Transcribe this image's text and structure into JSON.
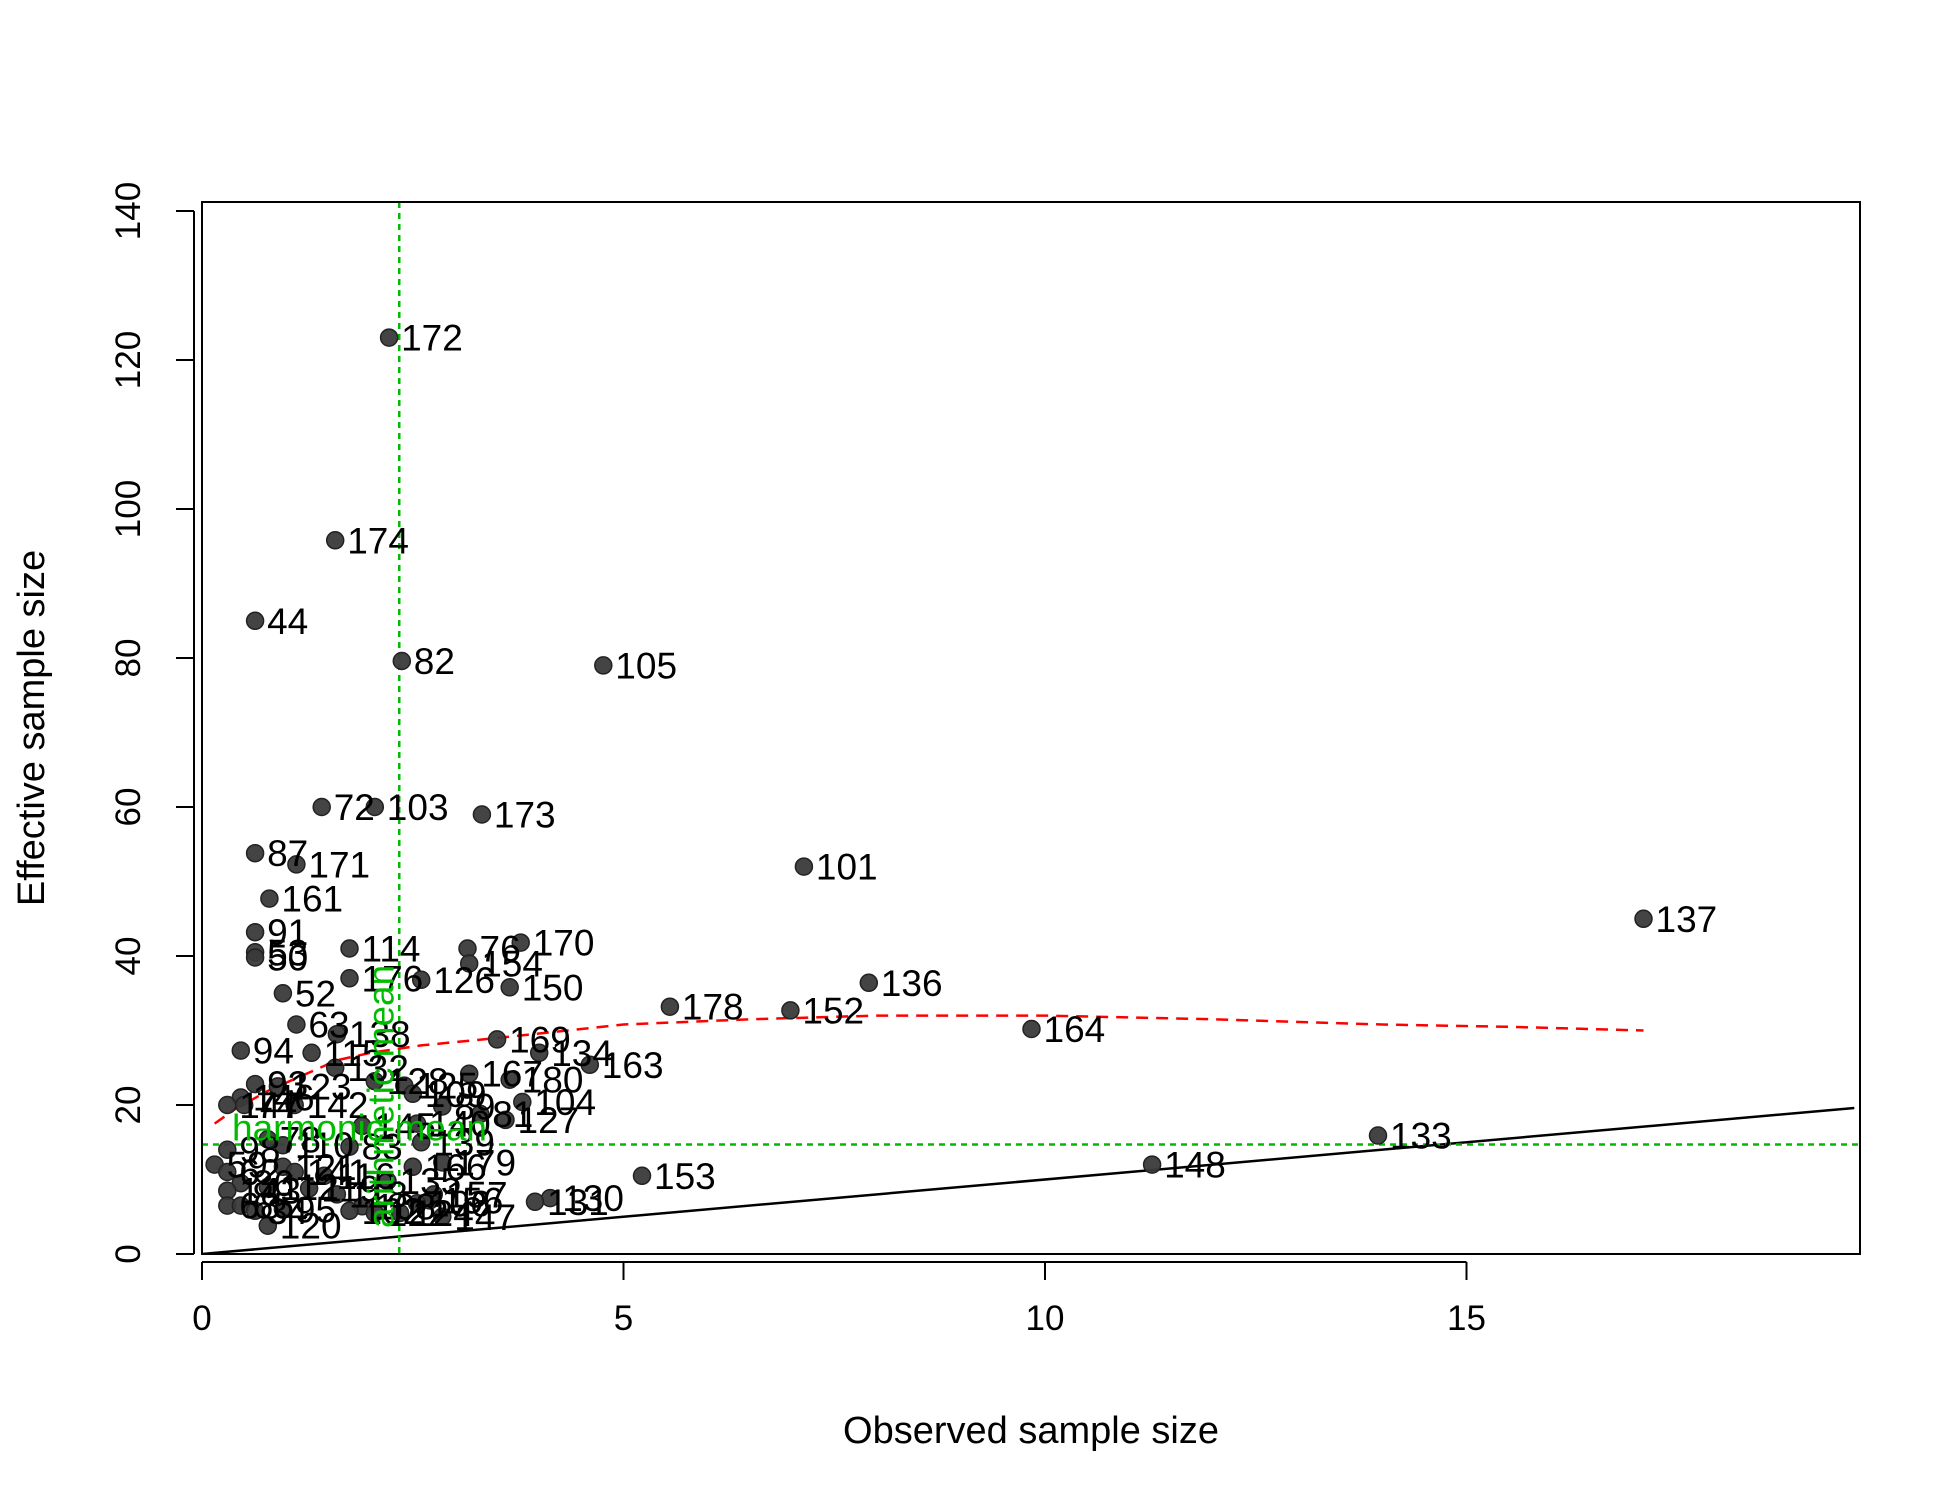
{
  "chart_data": {
    "type": "scatter",
    "title": "",
    "xlabel": "Observed sample size",
    "ylabel": "Effective sample size",
    "xlim": [
      0,
      19.6
    ],
    "ylim": [
      0,
      140
    ],
    "xticks": [
      0,
      5,
      10,
      15
    ],
    "yticks": [
      0,
      20,
      40,
      60,
      80,
      100,
      120,
      140
    ],
    "grid": false,
    "legend": "none",
    "colors": {
      "points": "#3a3a3a",
      "identity_line": "#000000",
      "trend_line": "#ff0000",
      "reference_lines": "#00bb00"
    },
    "identity_line": {
      "from": [
        0,
        0
      ],
      "to": [
        19.6,
        19.6
      ]
    },
    "trend_line": {
      "x": [
        0.15,
        0.4,
        0.8,
        1.2,
        1.6,
        2.0,
        2.6,
        3.5,
        5.0,
        6.5,
        8.0,
        10.0,
        12.0,
        14.0,
        15.5,
        17.1
      ],
      "y": [
        17.5,
        19.5,
        22.0,
        24.0,
        26.0,
        27.0,
        28.0,
        29.0,
        30.8,
        31.5,
        32.0,
        32.0,
        31.5,
        30.8,
        30.5,
        30.0
      ]
    },
    "reference_lines": [
      {
        "orientation": "vertical",
        "value": 2.34,
        "label": "arithmetic mean"
      },
      {
        "orientation": "horizontal",
        "value": 14.7,
        "label": "harmonic mean"
      }
    ],
    "points": [
      {
        "id": "172",
        "x": 2.22,
        "y": 123
      },
      {
        "id": "174",
        "x": 1.58,
        "y": 95.8
      },
      {
        "id": "44",
        "x": 0.63,
        "y": 85
      },
      {
        "id": "82",
        "x": 2.37,
        "y": 79.6
      },
      {
        "id": "105",
        "x": 4.76,
        "y": 79
      },
      {
        "id": "72",
        "x": 1.42,
        "y": 60
      },
      {
        "id": "103",
        "x": 2.05,
        "y": 60
      },
      {
        "id": "173",
        "x": 3.32,
        "y": 59
      },
      {
        "id": "87",
        "x": 0.63,
        "y": 53.8
      },
      {
        "id": "171",
        "x": 1.12,
        "y": 52.3
      },
      {
        "id": "101",
        "x": 7.14,
        "y": 52
      },
      {
        "id": "161",
        "x": 0.8,
        "y": 47.7
      },
      {
        "id": "137",
        "x": 17.1,
        "y": 45
      },
      {
        "id": "91",
        "x": 0.63,
        "y": 43.2
      },
      {
        "id": "170",
        "x": 3.78,
        "y": 41.8
      },
      {
        "id": "114",
        "x": 1.75,
        "y": 41
      },
      {
        "id": "76",
        "x": 3.15,
        "y": 41
      },
      {
        "id": "53",
        "x": 0.63,
        "y": 40.5
      },
      {
        "id": "50",
        "x": 0.63,
        "y": 39.8
      },
      {
        "id": "154",
        "x": 3.17,
        "y": 39
      },
      {
        "id": "176",
        "x": 1.75,
        "y": 37
      },
      {
        "id": "126",
        "x": 2.6,
        "y": 36.8
      },
      {
        "id": "136",
        "x": 7.91,
        "y": 36.4
      },
      {
        "id": "150",
        "x": 3.65,
        "y": 35.8
      },
      {
        "id": "52",
        "x": 0.96,
        "y": 35
      },
      {
        "id": "178",
        "x": 5.55,
        "y": 33.2
      },
      {
        "id": "152",
        "x": 6.98,
        "y": 32.7
      },
      {
        "id": "63",
        "x": 1.12,
        "y": 30.8
      },
      {
        "id": "164",
        "x": 9.84,
        "y": 30.2
      },
      {
        "id": "138",
        "x": 1.6,
        "y": 29.5
      },
      {
        "id": "169",
        "x": 3.5,
        "y": 28.8
      },
      {
        "id": "115",
        "x": 1.3,
        "y": 27
      },
      {
        "id": "94",
        "x": 0.46,
        "y": 27.3
      },
      {
        "id": "134",
        "x": 4.0,
        "y": 27
      },
      {
        "id": "132",
        "x": 1.58,
        "y": 25
      },
      {
        "id": "163",
        "x": 4.6,
        "y": 25.4
      },
      {
        "id": "167",
        "x": 3.17,
        "y": 24.2
      },
      {
        "id": "180",
        "x": 3.65,
        "y": 23.4
      },
      {
        "id": "128",
        "x": 2.05,
        "y": 23.2
      },
      {
        "id": "125",
        "x": 2.4,
        "y": 22.6
      },
      {
        "id": "93",
        "x": 0.63,
        "y": 22.8
      },
      {
        "id": "123",
        "x": 0.9,
        "y": 22.5
      },
      {
        "id": "109",
        "x": 2.5,
        "y": 21.5
      },
      {
        "id": "146",
        "x": 0.46,
        "y": 21
      },
      {
        "id": "104",
        "x": 3.8,
        "y": 20.4
      },
      {
        "id": "147",
        "x": 0.3,
        "y": 20
      },
      {
        "id": "74",
        "x": 0.5,
        "y": 20
      },
      {
        "id": "142",
        "x": 1.1,
        "y": 20
      },
      {
        "id": "89",
        "x": 2.85,
        "y": 19.8
      },
      {
        "id": "81",
        "x": 3.3,
        "y": 18.8
      },
      {
        "id": "127",
        "x": 3.6,
        "y": 18
      },
      {
        "id": "140",
        "x": 2.55,
        "y": 17.5
      },
      {
        "id": "145",
        "x": 1.9,
        "y": 17.2
      },
      {
        "id": "78",
        "x": 0.78,
        "y": 15.4
      },
      {
        "id": "133",
        "x": 13.95,
        "y": 15.9
      },
      {
        "id": "139",
        "x": 2.6,
        "y": 15
      },
      {
        "id": "110",
        "x": 0.96,
        "y": 14.6
      },
      {
        "id": "83",
        "x": 1.75,
        "y": 14.4
      },
      {
        "id": "98",
        "x": 0.3,
        "y": 14
      },
      {
        "id": "179",
        "x": 2.85,
        "y": 12.3
      },
      {
        "id": "166",
        "x": 2.5,
        "y": 11.7
      },
      {
        "id": "148",
        "x": 11.27,
        "y": 12
      },
      {
        "id": "121",
        "x": 0.96,
        "y": 11.7
      },
      {
        "id": "59",
        "x": 0.15,
        "y": 12
      },
      {
        "id": "62",
        "x": 0.3,
        "y": 11
      },
      {
        "id": "141",
        "x": 1.1,
        "y": 11
      },
      {
        "id": "116",
        "x": 1.45,
        "y": 10.5
      },
      {
        "id": "153",
        "x": 5.22,
        "y": 10.5
      },
      {
        "id": "135",
        "x": 2.2,
        "y": 9.8
      },
      {
        "id": "86",
        "x": 0.46,
        "y": 9.5
      },
      {
        "id": "112",
        "x": 0.78,
        "y": 9
      },
      {
        "id": "119",
        "x": 1.27,
        "y": 8.8
      },
      {
        "id": "143",
        "x": 0.3,
        "y": 8.5
      },
      {
        "id": "157",
        "x": 2.75,
        "y": 8
      },
      {
        "id": "118",
        "x": 1.6,
        "y": 8
      },
      {
        "id": "130",
        "x": 4.13,
        "y": 7.5
      },
      {
        "id": "131",
        "x": 3.95,
        "y": 7.0
      },
      {
        "id": "156",
        "x": 2.7,
        "y": 7.2
      },
      {
        "id": "106",
        "x": 2.55,
        "y": 6.8
      },
      {
        "id": "68",
        "x": 0.3,
        "y": 6.5
      },
      {
        "id": "65",
        "x": 0.46,
        "y": 6.5
      },
      {
        "id": "108",
        "x": 1.9,
        "y": 6.4
      },
      {
        "id": "34",
        "x": 0.63,
        "y": 5.8
      },
      {
        "id": "95",
        "x": 0.96,
        "y": 6
      },
      {
        "id": "102",
        "x": 1.75,
        "y": 5.8
      },
      {
        "id": "122",
        "x": 2.05,
        "y": 5.5
      },
      {
        "id": "124",
        "x": 2.35,
        "y": 5.5
      },
      {
        "id": "147b",
        "x": 2.85,
        "y": 5.0
      },
      {
        "id": "120",
        "x": 0.78,
        "y": 3.8
      }
    ],
    "point_labels": [
      {
        "point": "172",
        "text": "172"
      },
      {
        "point": "174",
        "text": "174"
      },
      {
        "point": "44",
        "text": "44"
      },
      {
        "point": "82",
        "text": "82"
      },
      {
        "point": "105",
        "text": "105"
      },
      {
        "point": "72",
        "text": "72"
      },
      {
        "point": "103",
        "text": "103"
      },
      {
        "point": "173",
        "text": "173"
      },
      {
        "point": "87",
        "text": "87"
      },
      {
        "point": "171",
        "text": "171"
      },
      {
        "point": "101",
        "text": "101"
      },
      {
        "point": "161",
        "text": "161"
      },
      {
        "point": "137",
        "text": "137"
      },
      {
        "point": "91",
        "text": "91"
      },
      {
        "point": "170",
        "text": "170"
      },
      {
        "point": "114",
        "text": "114"
      },
      {
        "point": "76",
        "text": "76"
      },
      {
        "point": "53",
        "text": "53"
      },
      {
        "point": "50",
        "text": "50"
      },
      {
        "point": "154",
        "text": "154"
      },
      {
        "point": "176",
        "text": "176"
      },
      {
        "point": "126",
        "text": "126"
      },
      {
        "point": "136",
        "text": "136"
      },
      {
        "point": "150",
        "text": "150"
      },
      {
        "point": "52",
        "text": "52"
      },
      {
        "point": "178",
        "text": "178"
      },
      {
        "point": "152",
        "text": "152"
      },
      {
        "point": "63",
        "text": "63"
      },
      {
        "point": "164",
        "text": "164"
      },
      {
        "point": "138",
        "text": "138"
      },
      {
        "point": "169",
        "text": "169"
      },
      {
        "point": "115",
        "text": "115"
      },
      {
        "point": "94",
        "text": "94"
      },
      {
        "point": "134",
        "text": "134"
      },
      {
        "point": "132",
        "text": "132"
      },
      {
        "point": "163",
        "text": "163"
      },
      {
        "point": "167",
        "text": "167"
      },
      {
        "point": "180",
        "text": "180"
      },
      {
        "point": "128",
        "text": "128"
      },
      {
        "point": "125",
        "text": "125"
      },
      {
        "point": "93",
        "text": "93"
      },
      {
        "point": "123",
        "text": "123"
      },
      {
        "point": "109",
        "text": "109"
      },
      {
        "point": "146",
        "text": "146"
      },
      {
        "point": "104",
        "text": "104"
      },
      {
        "point": "147",
        "text": "147"
      },
      {
        "point": "74",
        "text": "74"
      },
      {
        "point": "142",
        "text": "142"
      },
      {
        "point": "89",
        "text": "89"
      },
      {
        "point": "81",
        "text": "81"
      },
      {
        "point": "127",
        "text": "127"
      },
      {
        "point": "140",
        "text": "140"
      },
      {
        "point": "145",
        "text": "145"
      },
      {
        "point": "78",
        "text": "78"
      },
      {
        "point": "133",
        "text": "133"
      },
      {
        "point": "139",
        "text": "139"
      },
      {
        "point": "110",
        "text": "110"
      },
      {
        "point": "83",
        "text": "83"
      },
      {
        "point": "98",
        "text": "98"
      },
      {
        "point": "179",
        "text": "179"
      },
      {
        "point": "166",
        "text": "166"
      },
      {
        "point": "148",
        "text": "148"
      },
      {
        "point": "121",
        "text": "121"
      },
      {
        "point": "59",
        "text": "59"
      },
      {
        "point": "62",
        "text": "62"
      },
      {
        "point": "141",
        "text": "141"
      },
      {
        "point": "116",
        "text": "116"
      },
      {
        "point": "153",
        "text": "153"
      },
      {
        "point": "135",
        "text": "135"
      },
      {
        "point": "86",
        "text": "86"
      },
      {
        "point": "112",
        "text": "112"
      },
      {
        "point": "119",
        "text": "119"
      },
      {
        "point": "143",
        "text": "143"
      },
      {
        "point": "157",
        "text": "157"
      },
      {
        "point": "118",
        "text": "118"
      },
      {
        "point": "130",
        "text": "130"
      },
      {
        "point": "131",
        "text": "131"
      },
      {
        "point": "156",
        "text": "156"
      },
      {
        "point": "106",
        "text": "106"
      },
      {
        "point": "68",
        "text": "68"
      },
      {
        "point": "65",
        "text": "65"
      },
      {
        "point": "108",
        "text": "108"
      },
      {
        "point": "34",
        "text": "34"
      },
      {
        "point": "95",
        "text": "95"
      },
      {
        "point": "102",
        "text": "102"
      },
      {
        "point": "122",
        "text": "122"
      },
      {
        "point": "124",
        "text": "124"
      },
      {
        "point": "147b",
        "text": "147"
      },
      {
        "point": "120",
        "text": "120"
      }
    ]
  }
}
